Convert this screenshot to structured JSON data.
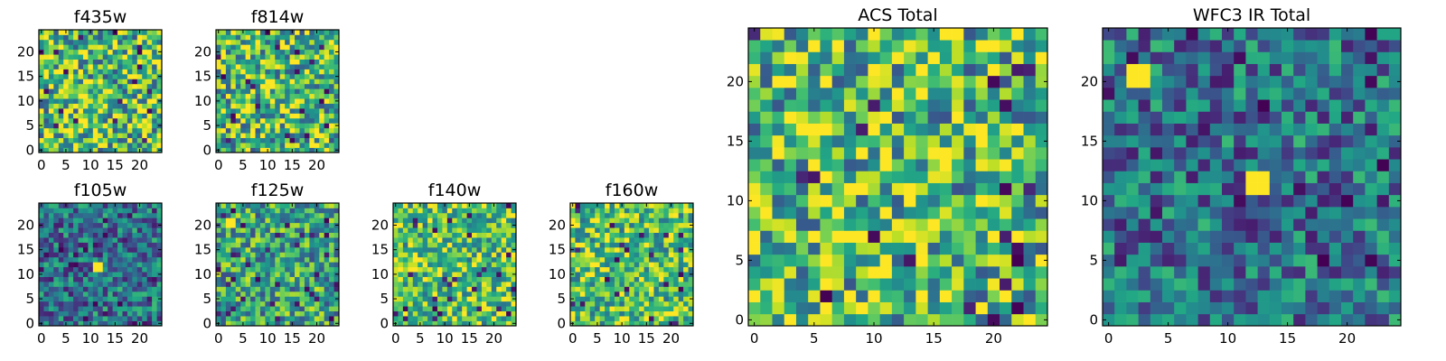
{
  "chart_data": [
    {
      "type": "heatmap",
      "title": "f435w",
      "grid_size": 25,
      "colormap": "viridis",
      "xlim": [
        -0.5,
        24.5
      ],
      "ylim": [
        -0.5,
        24.5
      ],
      "xticks": [
        0,
        5,
        10,
        15,
        20
      ],
      "yticks": [
        0,
        5,
        10,
        15,
        20
      ],
      "value_distribution": "uniform-noise",
      "hotspots": []
    },
    {
      "type": "heatmap",
      "title": "f814w",
      "grid_size": 25,
      "colormap": "viridis",
      "xlim": [
        -0.5,
        24.5
      ],
      "ylim": [
        -0.5,
        24.5
      ],
      "xticks": [
        0,
        5,
        10,
        15,
        20
      ],
      "yticks": [
        0,
        5,
        10,
        15,
        20
      ],
      "value_distribution": "uniform-noise",
      "hotspots": []
    },
    {
      "type": "heatmap",
      "title": "f105w",
      "grid_size": 25,
      "colormap": "viridis",
      "xlim": [
        -0.5,
        24.5
      ],
      "ylim": [
        -0.5,
        24.5
      ],
      "xticks": [
        0,
        5,
        10,
        15,
        20
      ],
      "yticks": [
        0,
        5,
        10,
        15,
        20
      ],
      "value_distribution": "dim-noise",
      "hotspots": [
        [
          11,
          11
        ],
        [
          12,
          11
        ],
        [
          11,
          12
        ],
        [
          12,
          12
        ]
      ]
    },
    {
      "type": "heatmap",
      "title": "f125w",
      "grid_size": 25,
      "colormap": "viridis",
      "xlim": [
        -0.5,
        24.5
      ],
      "ylim": [
        -0.5,
        24.5
      ],
      "xticks": [
        0,
        5,
        10,
        15,
        20
      ],
      "yticks": [
        0,
        5,
        10,
        15,
        20
      ],
      "value_distribution": "mid-noise",
      "hotspots": [
        [
          2,
          20
        ],
        [
          3,
          20
        ],
        [
          2,
          21
        ],
        [
          3,
          21
        ]
      ]
    },
    {
      "type": "heatmap",
      "title": "f140w",
      "grid_size": 25,
      "colormap": "viridis",
      "xlim": [
        -0.5,
        24.5
      ],
      "ylim": [
        -0.5,
        24.5
      ],
      "xticks": [
        0,
        5,
        10,
        15,
        20
      ],
      "yticks": [
        0,
        5,
        10,
        15,
        20
      ],
      "value_distribution": "bright-noise",
      "hotspots": []
    },
    {
      "type": "heatmap",
      "title": "f160w",
      "grid_size": 25,
      "colormap": "viridis",
      "xlim": [
        -0.5,
        24.5
      ],
      "ylim": [
        -0.5,
        24.5
      ],
      "xticks": [
        0,
        5,
        10,
        15,
        20
      ],
      "yticks": [
        0,
        5,
        10,
        15,
        20
      ],
      "value_distribution": "bright-noise",
      "hotspots": [
        [
          0,
          20
        ],
        [
          1,
          20
        ],
        [
          0,
          21
        ]
      ]
    },
    {
      "type": "heatmap",
      "title": "ACS Total",
      "grid_size": 25,
      "colormap": "viridis",
      "xlim": [
        -0.5,
        24.5
      ],
      "ylim": [
        -0.5,
        24.5
      ],
      "xticks": [
        0,
        5,
        10,
        15,
        20
      ],
      "yticks": [
        0,
        5,
        10,
        15,
        20
      ],
      "value_distribution": "uniform-noise",
      "hotspots": []
    },
    {
      "type": "heatmap",
      "title": "WFC3 IR Total",
      "grid_size": 25,
      "colormap": "viridis",
      "xlim": [
        -0.5,
        24.5
      ],
      "ylim": [
        -0.5,
        24.5
      ],
      "xticks": [
        0,
        5,
        10,
        15,
        20
      ],
      "yticks": [
        0,
        5,
        10,
        15,
        20
      ],
      "value_distribution": "dim-noise",
      "hotspots": [
        [
          2,
          20
        ],
        [
          3,
          20
        ],
        [
          2,
          21
        ],
        [
          3,
          21
        ],
        [
          12,
          11
        ],
        [
          13,
          11
        ],
        [
          12,
          12
        ],
        [
          13,
          12
        ]
      ]
    }
  ]
}
